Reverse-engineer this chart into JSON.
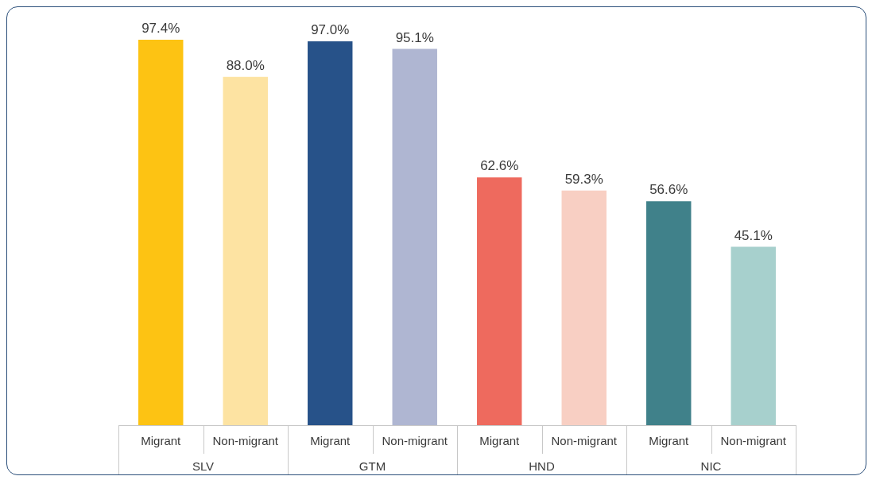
{
  "chart_data": {
    "type": "bar",
    "categories": [
      "Migrant",
      "Non-migrant",
      "Migrant",
      "Non-migrant",
      "Migrant",
      "Non-migrant",
      "Migrant",
      "Non-migrant"
    ],
    "values": [
      97.4,
      88.0,
      97.0,
      95.1,
      62.6,
      59.3,
      56.6,
      45.1
    ],
    "colors": [
      "#fdc313",
      "#fde3a2",
      "#275289",
      "#afb6d2",
      "#ee6a5e",
      "#f8cfc3",
      "#40818a",
      "#a7d0cd"
    ],
    "value_labels": [
      "97.4%",
      "88.0%",
      "97.0%",
      "95.1%",
      "62.6%",
      "59.3%",
      "56.6%",
      "45.1%"
    ],
    "annotations": [
      "SLV",
      "GTM",
      "HND",
      "NIC"
    ],
    "grid": false,
    "legend": false,
    "tick_labels": "x"
  }
}
